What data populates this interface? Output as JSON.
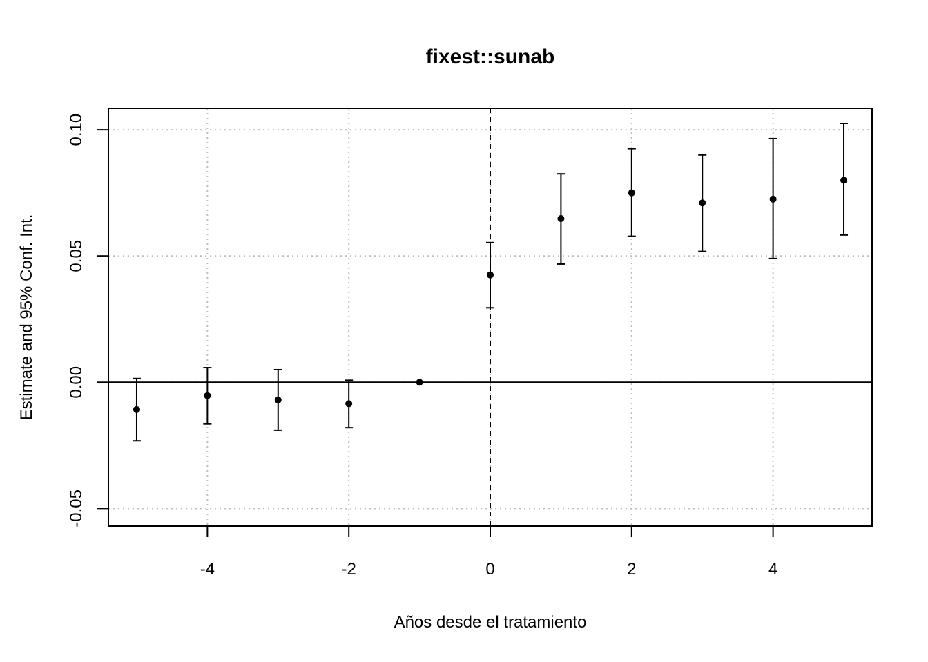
{
  "chart_data": {
    "type": "scatter",
    "title": "fixest::sunab",
    "xlabel": "Años desde el tratamiento",
    "ylabel": "Estimate and 95% Conf. Int.",
    "xlim": [
      -5.4,
      5.4
    ],
    "ylim": [
      -0.057,
      0.1085
    ],
    "x_ticks": [
      -4,
      -2,
      0,
      2,
      4
    ],
    "x_tick_labels": [
      "-4",
      "-2",
      "0",
      "2",
      "4"
    ],
    "y_ticks": [
      -0.05,
      0.0,
      0.05,
      0.1
    ],
    "y_tick_labels": [
      "-0.05",
      "0.00",
      "0.05",
      "0.10"
    ],
    "grid": true,
    "reference_lines": {
      "horizontal_solid_y": 0,
      "vertical_dashed_x": 0
    },
    "series": [
      {
        "x": [
          -5,
          -4,
          -3,
          -2,
          -1,
          0,
          1,
          2,
          3,
          4,
          5
        ],
        "estimate": [
          -0.0108,
          -0.0053,
          -0.007,
          -0.0085,
          0.0,
          0.0425,
          0.0648,
          0.075,
          0.071,
          0.0725,
          0.08
        ],
        "ci_low": [
          -0.0232,
          -0.0165,
          -0.019,
          -0.018,
          0.0,
          0.0295,
          0.0468,
          0.0578,
          0.0518,
          0.049,
          0.0583
        ],
        "ci_high": [
          0.0015,
          0.0058,
          0.005,
          0.0008,
          0.0,
          0.0553,
          0.0825,
          0.0925,
          0.09,
          0.0965,
          0.1025
        ]
      }
    ],
    "colors": {
      "points": "#000000",
      "grid": "#bebebe",
      "axes": "#000000"
    }
  }
}
